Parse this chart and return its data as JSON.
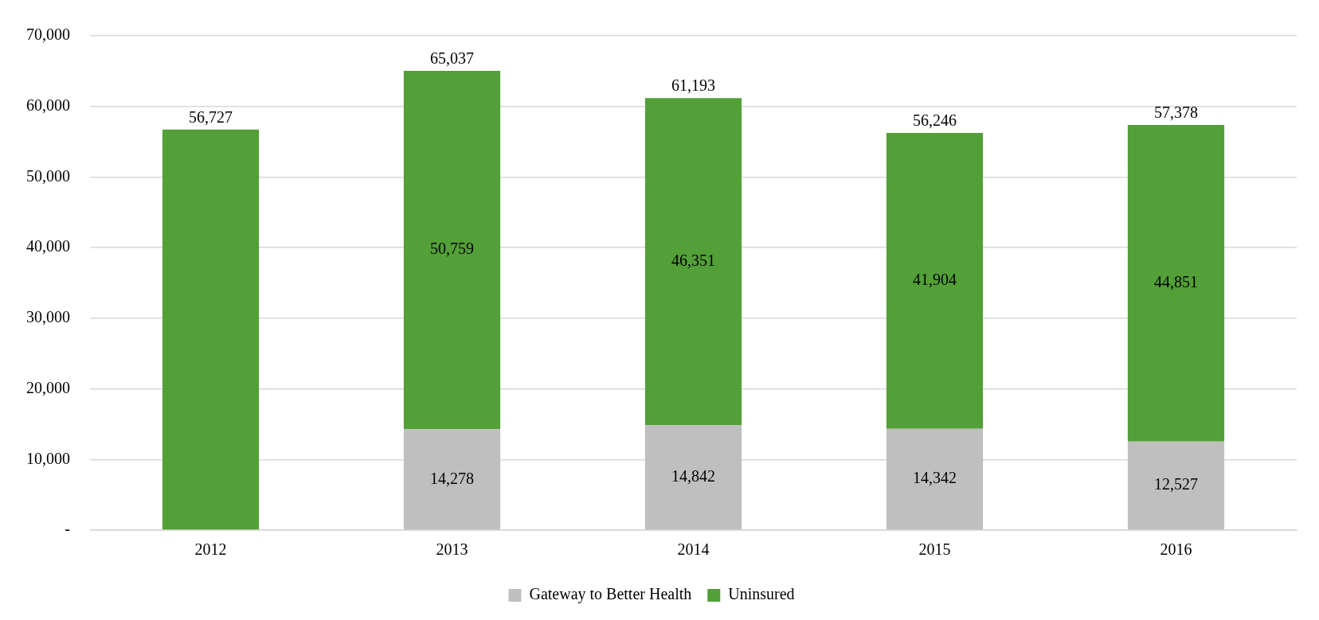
{
  "chart_data": {
    "type": "bar",
    "stacked": true,
    "categories": [
      "2012",
      "2013",
      "2014",
      "2015",
      "2016"
    ],
    "series": [
      {
        "name": "Gateway to Better Health",
        "color": "#bfbfbf",
        "values": [
          null,
          14278,
          14842,
          14342,
          12527
        ],
        "value_labels": [
          null,
          "14,278",
          "14,842",
          "14,342",
          "12,527"
        ]
      },
      {
        "name": "Uninsured",
        "color": "#539f38",
        "values": [
          56727,
          50759,
          46351,
          41904,
          44851
        ],
        "value_labels": [
          null,
          "50,759",
          "46,351",
          "41,904",
          "44,851"
        ]
      }
    ],
    "totals": [
      "56,727",
      "65,037",
      "61,193",
      "56,246",
      "57,378"
    ],
    "ylim": [
      0,
      70000
    ],
    "yticks": [
      {
        "value": 0,
        "label": "-"
      },
      {
        "value": 10000,
        "label": "10,000"
      },
      {
        "value": 20000,
        "label": "20,000"
      },
      {
        "value": 30000,
        "label": "30,000"
      },
      {
        "value": 40000,
        "label": "40,000"
      },
      {
        "value": 50000,
        "label": "50,000"
      },
      {
        "value": 60000,
        "label": "60,000"
      },
      {
        "value": 70000,
        "label": "70,000"
      }
    ],
    "grid": "y",
    "legend": "bottom"
  }
}
